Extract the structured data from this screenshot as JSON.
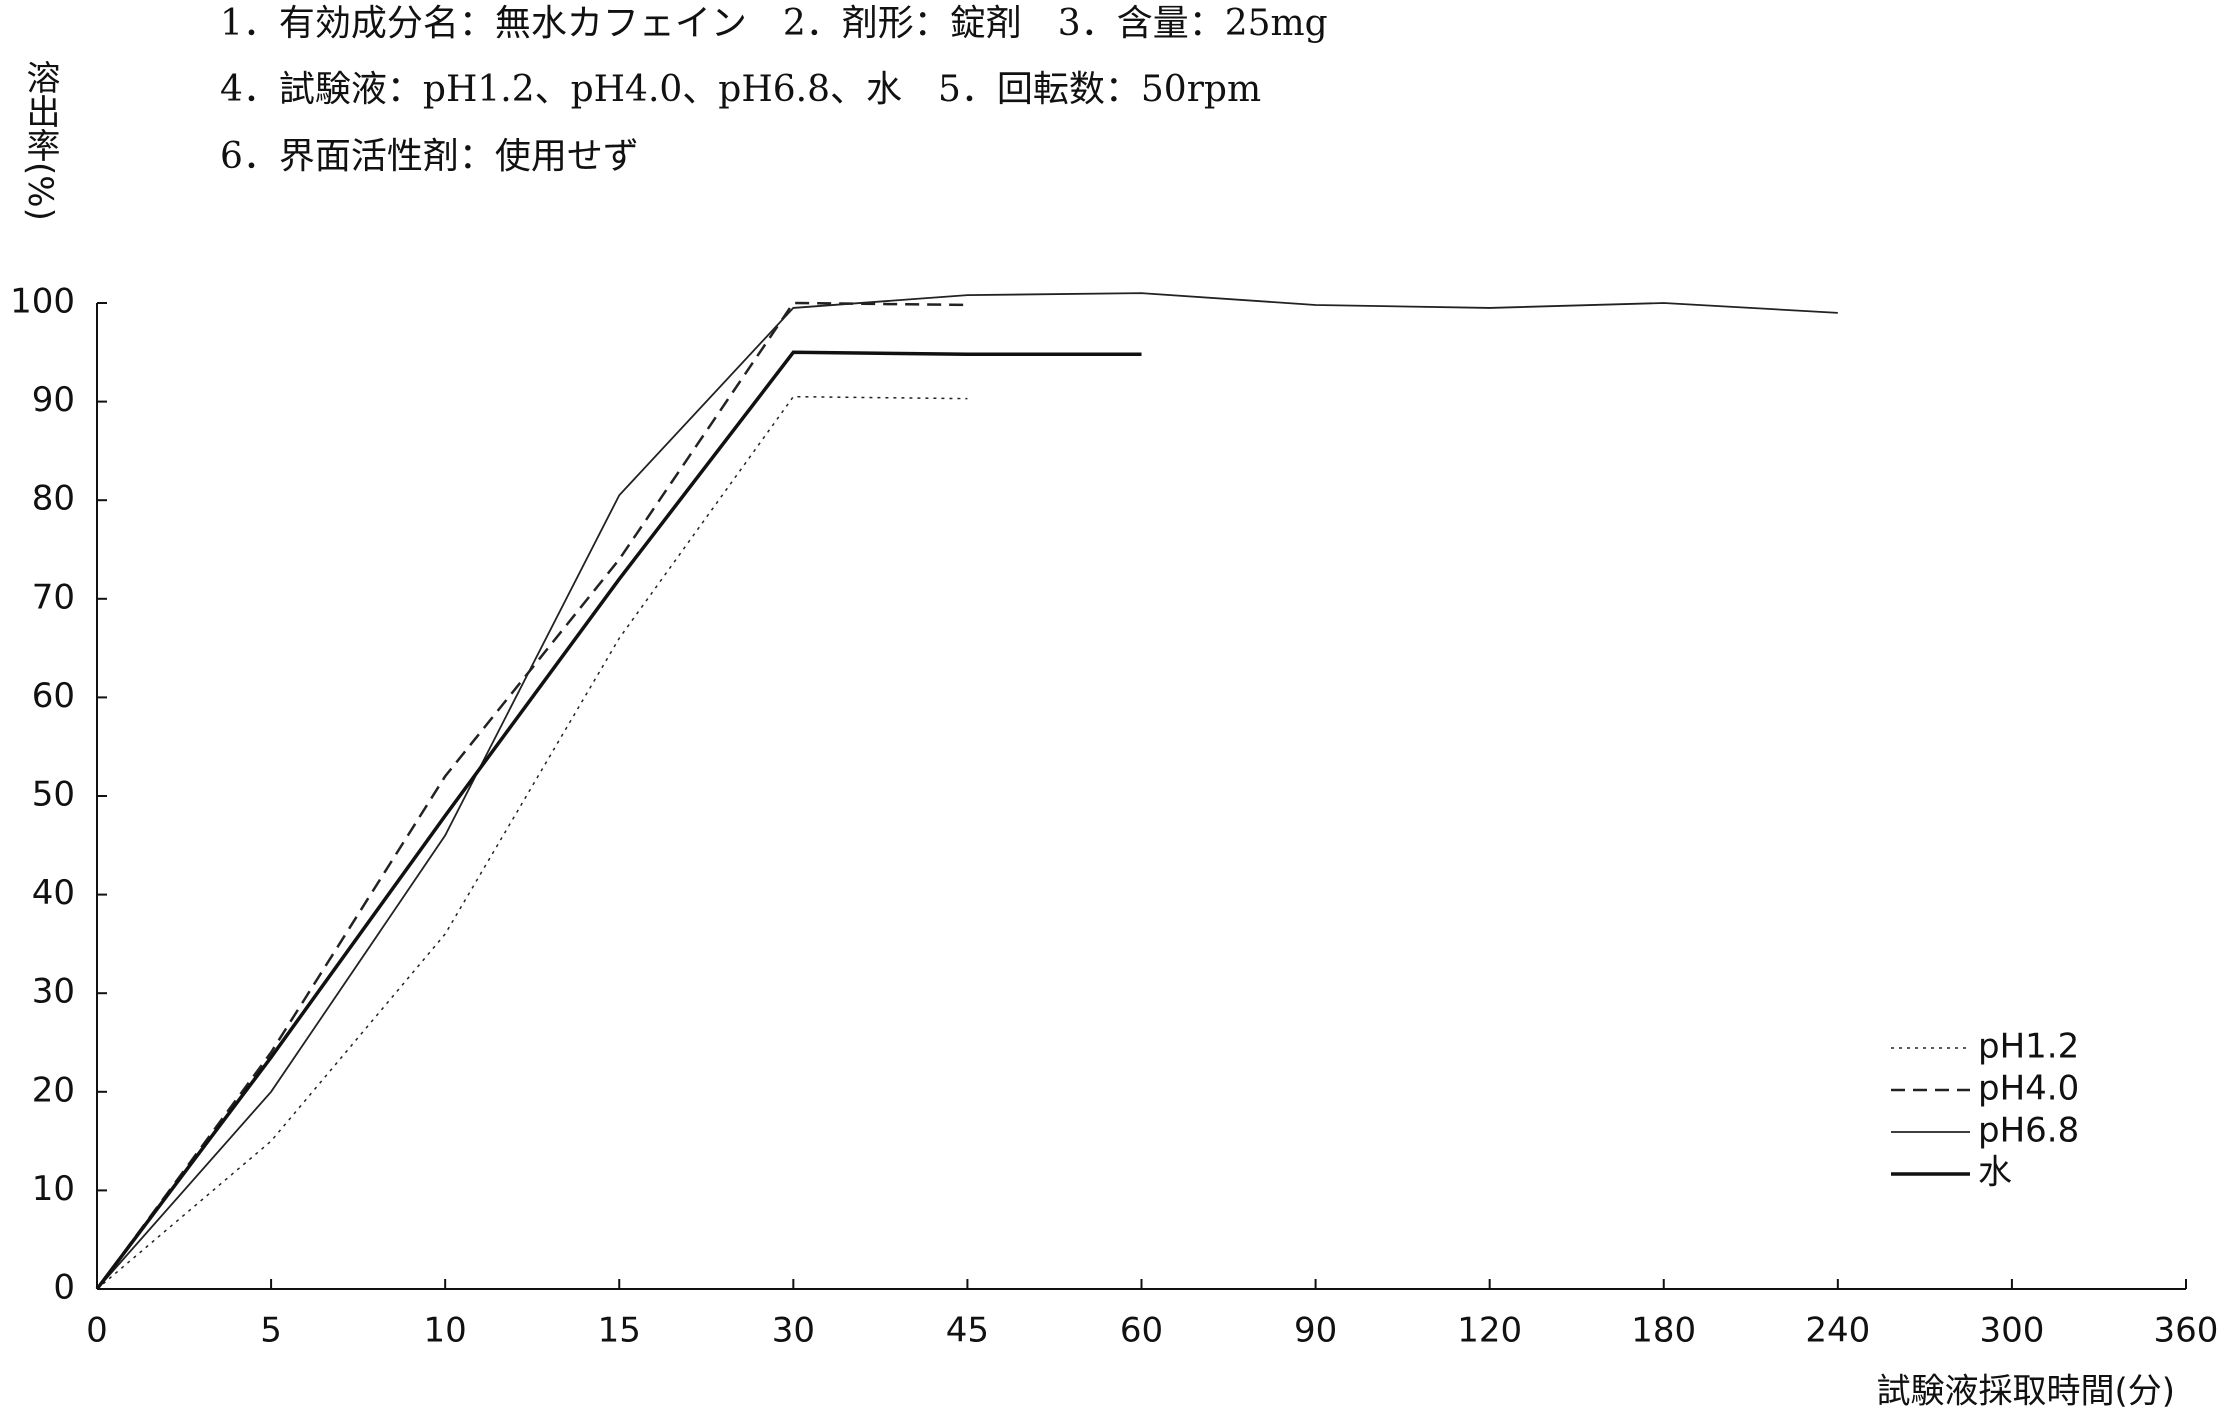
{
  "chart_data": {
    "type": "line",
    "subtitle_lines": [
      "1．有効成分名：無水カフェイン　2．剤形：錠剤　3．含量：25mg",
      "4．試験液：pH1.2、pH4.0、pH6.8、水　5．回転数：50rpm",
      "6．界面活性剤：使用せず"
    ],
    "y_label": "溶出率(%)",
    "x_label": "試験液採取時間(分)",
    "categories": [
      "0",
      "5",
      "10",
      "15",
      "30",
      "45",
      "60",
      "90",
      "120",
      "180",
      "240",
      "300",
      "360"
    ],
    "series": [
      {
        "name": "pH1.2",
        "color": "#222",
        "line_style": "dotted",
        "line_width": 1.5,
        "values": [
          0,
          15,
          36,
          66,
          90.5,
          90.3,
          null,
          null,
          null,
          null,
          null,
          null,
          null
        ]
      },
      {
        "name": "pH4.0",
        "color": "#222",
        "line_style": "dashed",
        "line_width": 2.5,
        "values": [
          0,
          24,
          52,
          74,
          100,
          99.8,
          null,
          null,
          null,
          null,
          null,
          null,
          null
        ]
      },
      {
        "name": "pH6.8",
        "color": "#222",
        "line_style": "solid",
        "line_width": 1.8,
        "values": [
          0,
          20,
          46,
          80.5,
          99.5,
          100.8,
          101,
          99.8,
          99.5,
          100,
          99,
          null,
          null
        ]
      },
      {
        "name": "水",
        "color": "#111",
        "line_style": "solid",
        "line_width": 3.5,
        "values": [
          0,
          23.5,
          48,
          72,
          95,
          94.8,
          94.8,
          null,
          null,
          null,
          null,
          null,
          null
        ]
      }
    ],
    "ylim": [
      0,
      100
    ],
    "yticks": [
      0,
      10,
      20,
      30,
      40,
      50,
      60,
      70,
      80,
      90,
      100
    ],
    "legend": "lower right"
  }
}
